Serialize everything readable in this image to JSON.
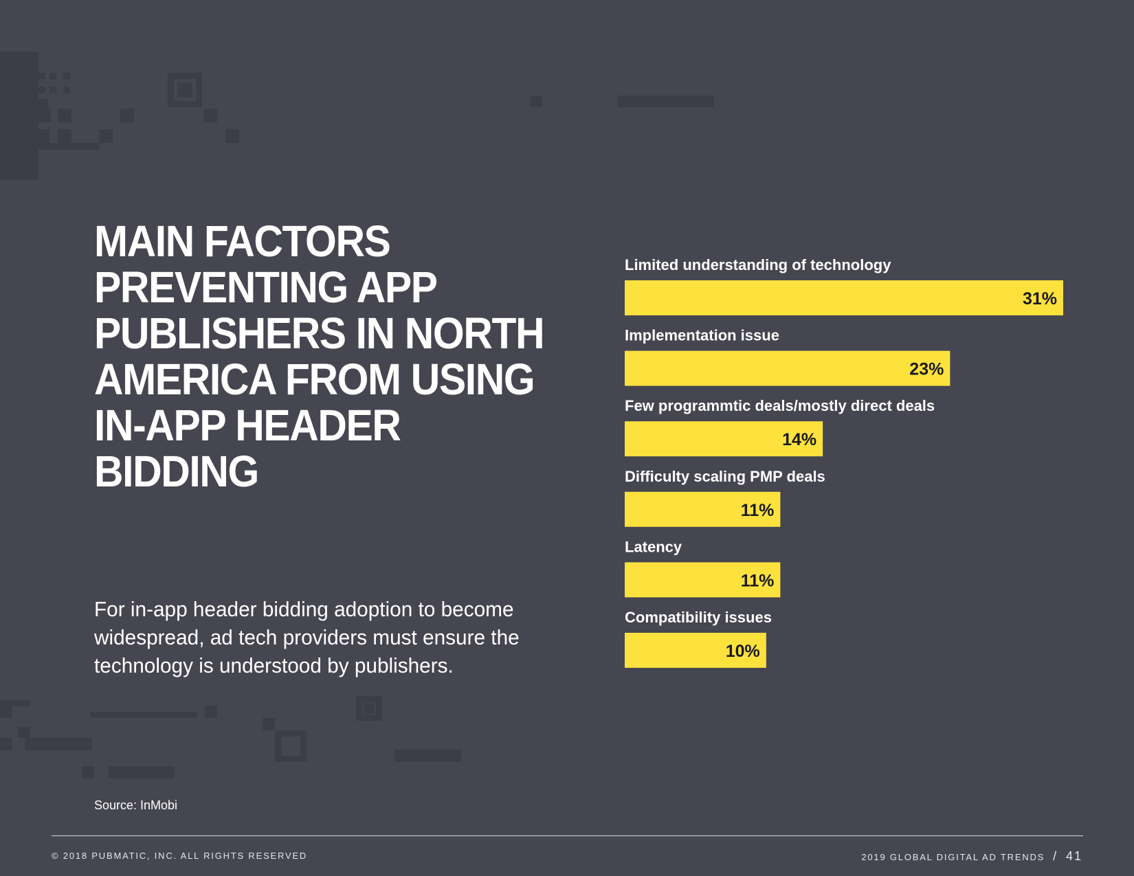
{
  "title": "MAIN FACTORS PREVENTING APP PUBLISHERS IN NORTH AMERICA FROM USING IN-APP HEADER BIDDING",
  "blurb": "For in-app header bidding adoption to become widespread, ad tech providers must ensure the technology is understood by publishers.",
  "source": "Source: InMobi",
  "footer": {
    "copyright": "© 2018 PUBMATIC, INC. ALL RIGHTS RESERVED",
    "report": "2019 GLOBAL DIGITAL AD TRENDS",
    "separator": "/",
    "page": "41"
  },
  "colors": {
    "background": "#464651",
    "bar": "#fde23e",
    "decoration": "#3d3d47"
  },
  "chart_data": {
    "type": "bar",
    "orientation": "horizontal",
    "categories": [
      "Limited understanding of technology",
      "Implementation issue",
      "Few programmtic deals/mostly direct deals",
      "Difficulty scaling PMP deals",
      "Latency",
      "Compatibility issues"
    ],
    "values": [
      31,
      23,
      14,
      11,
      11,
      10
    ],
    "value_labels": [
      "31%",
      "23%",
      "14%",
      "11%",
      "11%",
      "10%"
    ],
    "unit": "%",
    "xlim": [
      0,
      31
    ],
    "grid": false,
    "legend": "none"
  }
}
